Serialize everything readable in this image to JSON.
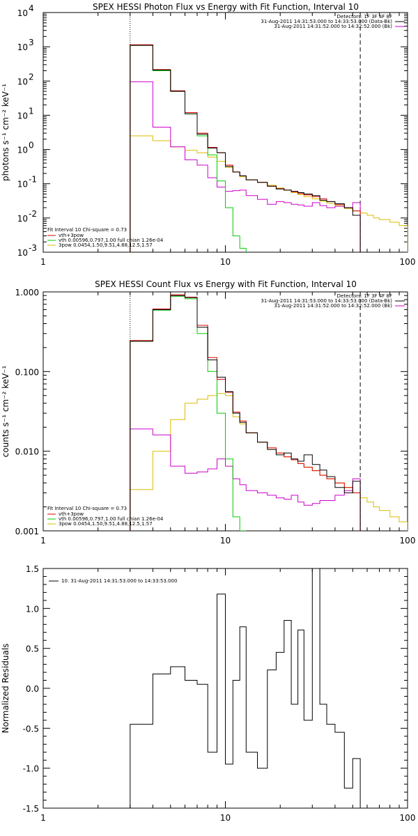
{
  "panels": [
    {
      "id": "photon",
      "title": "SPEX HESSI Photon Flux vs Energy with Fit Function, Interval 10",
      "ylabel": "photons s⁻¹ cm⁻² keV⁻¹",
      "yscale": "log",
      "xscale": "log",
      "xlim": [
        1,
        100
      ],
      "ylim": [
        0.001,
        10000
      ],
      "xticks": [
        {
          "v": 1,
          "label": "1"
        },
        {
          "v": 10,
          "label": "10"
        },
        {
          "v": 100,
          "label": "100"
        }
      ],
      "yticks": [
        {
          "v": 0.001,
          "base": "10",
          "exp": "-3"
        },
        {
          "v": 0.01,
          "base": "10",
          "exp": "-2"
        },
        {
          "v": 0.1,
          "base": "10",
          "exp": "-1"
        },
        {
          "v": 1,
          "base": "10",
          "exp": "0"
        },
        {
          "v": 10,
          "base": "10",
          "exp": "1"
        },
        {
          "v": 100,
          "base": "10",
          "exp": "2"
        },
        {
          "v": 1000,
          "base": "10",
          "exp": "3"
        },
        {
          "v": 10000,
          "base": "10",
          "exp": "4"
        }
      ],
      "vlines": [
        {
          "x": 3,
          "style": "dotted"
        },
        {
          "x": 55,
          "style": "dashed"
        }
      ],
      "header_lines": [
        "Detectors: 1F 3F 4F 8F",
        "31-Aug-2011 14:31:53.000 to 14:33:53.000 (Data-Bk)",
        "31-Aug-2011 14:31:52.000 to 14:32:52.000 (Bk)"
      ],
      "header_colors": [
        "",
        "#000000",
        "#cc00cc"
      ],
      "legend_title": "Fit Interval 10   Chi-square = 0.73",
      "legend": [
        {
          "label": "vth+3pow",
          "color": "#dd0000"
        },
        {
          "label": "vth 0.00596,0.797,1.00  full chian 1.26e-04",
          "color": "#00cc00"
        },
        {
          "label": "3pow 0.0454,1.50,9.51,4.88,12.5,1.57",
          "color": "#ddbb00"
        }
      ]
    },
    {
      "id": "count",
      "title": "SPEX HESSI Count Flux vs Energy with Fit Function, Interval 10",
      "ylabel": "counts s⁻¹ cm⁻² keV⁻¹",
      "yscale": "log",
      "xscale": "log",
      "xlim": [
        1,
        100
      ],
      "ylim": [
        0.001,
        1.0
      ],
      "xticks": [
        {
          "v": 1,
          "label": "1"
        },
        {
          "v": 10,
          "label": "10"
        },
        {
          "v": 100,
          "label": "100"
        }
      ],
      "yticks": [
        {
          "v": 0.001,
          "label": "0.001"
        },
        {
          "v": 0.01,
          "label": "0.010"
        },
        {
          "v": 0.1,
          "label": "0.100"
        },
        {
          "v": 1.0,
          "label": "1.000"
        }
      ],
      "vlines": [
        {
          "x": 3,
          "style": "dotted"
        },
        {
          "x": 55,
          "style": "dashed"
        }
      ],
      "header_lines": [
        "Detectors: 1F 3F 4F 8F",
        "31-Aug-2011 14:31:53.000 to 14:33:53.000 (Data-Bk)",
        "31-Aug-2011 14:31:52.000 to 14:32:52.000 (Bk)"
      ],
      "header_colors": [
        "",
        "#000000",
        "#cc00cc"
      ],
      "legend_title": "Fit Interval 10   Chi-square = 0.73",
      "legend": [
        {
          "label": "vth+3pow",
          "color": "#dd0000"
        },
        {
          "label": "vth 0.00596,0.797,1.00  full chian 1.26e-04",
          "color": "#00cc00"
        },
        {
          "label": "3pow 0.0454,1.50,9.51,4.88,12.5,1.57",
          "color": "#ddbb00"
        }
      ]
    },
    {
      "id": "resid",
      "title": "",
      "ylabel": "Normalized Residuals",
      "yscale": "linear",
      "xscale": "log",
      "xlim": [
        1,
        100
      ],
      "ylim": [
        -1.5,
        1.5
      ],
      "xticks": [
        {
          "v": 1,
          "label": "1"
        },
        {
          "v": 10,
          "label": "10"
        },
        {
          "v": 100,
          "label": "100"
        }
      ],
      "yticks": [
        {
          "v": -1.5,
          "label": "-1.5"
        },
        {
          "v": -1.0,
          "label": "-1.0"
        },
        {
          "v": -0.5,
          "label": "-0.5"
        },
        {
          "v": 0.0,
          "label": "0.0"
        },
        {
          "v": 0.5,
          "label": "0.5"
        },
        {
          "v": 1.0,
          "label": "1.0"
        },
        {
          "v": 1.5,
          "label": "1.5"
        }
      ],
      "vlines": [],
      "header_lines": [],
      "header_colors": [],
      "legend_title": "",
      "legend": [
        {
          "label": "10. 31-Aug-2011 14:31:53.000 to 14:33:53.000",
          "color": "#000000"
        }
      ]
    }
  ],
  "chart_data": [
    {
      "type": "line",
      "title": "SPEX HESSI Photon Flux vs Energy with Fit Function, Interval 10",
      "xlabel": "",
      "ylabel": "photons s⁻¹ cm⁻² keV⁻¹",
      "xlim": [
        1,
        100
      ],
      "ylim": [
        0.001,
        10000
      ],
      "grid": false,
      "legend_position": "bottom-left",
      "bin_edges": [
        3,
        4,
        5,
        6,
        7,
        8,
        9,
        10,
        11,
        12,
        13,
        15,
        17,
        19,
        21,
        23,
        25,
        27,
        30,
        33,
        36,
        40,
        45,
        50,
        55,
        60,
        65,
        70,
        80,
        90,
        100
      ],
      "series": [
        {
          "name": "31-Aug-2011 14:31:53.000 to 14:33:53.000 (Data-Bk)",
          "color": "#000000",
          "values": [
            1100,
            210,
            50,
            11,
            2.8,
            1.1,
            0.8,
            0.32,
            0.22,
            0.17,
            0.13,
            0.11,
            0.085,
            0.07,
            0.065,
            0.06,
            0.055,
            0.05,
            0.045,
            0.033,
            0.03,
            0.026,
            0.02,
            0.012,
            null,
            null,
            null,
            null,
            null,
            null
          ]
        },
        {
          "name": "vth+3pow",
          "color": "#dd0000",
          "values": [
            1150,
            215,
            52,
            12,
            3.0,
            1.15,
            0.8,
            0.35,
            0.22,
            0.17,
            0.13,
            0.11,
            0.085,
            0.072,
            0.065,
            0.058,
            0.052,
            0.047,
            0.042,
            0.036,
            0.03,
            0.025,
            0.02,
            0.016,
            null,
            null,
            null,
            null,
            null,
            null
          ]
        },
        {
          "name": "vth",
          "color": "#00cc00",
          "values": [
            1100,
            200,
            50,
            11,
            2.5,
            0.7,
            0.12,
            0.02,
            0.003,
            0.0013,
            null,
            null,
            null,
            null,
            null,
            null,
            null,
            null,
            null,
            null,
            null,
            null,
            null,
            null,
            null,
            null,
            null,
            null,
            null,
            null
          ]
        },
        {
          "name": "3pow",
          "color": "#ddbb00",
          "values": [
            2.5,
            1.8,
            1.2,
            0.95,
            0.8,
            0.6,
            0.45,
            0.3,
            0.22,
            0.16,
            0.13,
            0.11,
            0.09,
            0.075,
            0.065,
            0.055,
            0.048,
            0.042,
            0.036,
            0.031,
            0.027,
            0.023,
            0.019,
            0.016,
            0.014,
            0.012,
            0.01,
            0.009,
            0.0075,
            0.006
          ]
        },
        {
          "name": "31-Aug-2011 14:31:52.000 to 14:32:52.000 (Bk)",
          "color": "#cc00cc",
          "values": [
            95,
            4.5,
            1.2,
            0.5,
            0.35,
            0.15,
            0.08,
            0.06,
            0.063,
            0.065,
            0.045,
            0.035,
            0.025,
            0.03,
            0.028,
            0.025,
            0.024,
            0.022,
            0.028,
            0.023,
            0.02,
            0.022,
            0.02,
            0.028,
            null,
            null,
            null,
            null,
            null,
            null
          ]
        }
      ]
    },
    {
      "type": "line",
      "title": "SPEX HESSI Count Flux vs Energy with Fit Function, Interval 10",
      "xlabel": "",
      "ylabel": "counts s⁻¹ cm⁻² keV⁻¹",
      "xlim": [
        1,
        100
      ],
      "ylim": [
        0.001,
        1.0
      ],
      "grid": false,
      "legend_position": "bottom-left",
      "bin_edges": [
        3,
        4,
        5,
        6,
        7,
        8,
        9,
        10,
        11,
        12,
        13,
        15,
        17,
        19,
        21,
        23,
        25,
        27,
        30,
        33,
        36,
        40,
        45,
        50,
        55,
        60,
        65,
        70,
        80,
        90,
        100
      ],
      "series": [
        {
          "name": "31-Aug-2011 14:31:53.000 to 14:33:53.000 (Data-Bk)",
          "color": "#000000",
          "values": [
            0.24,
            0.6,
            0.9,
            0.85,
            0.36,
            0.14,
            0.085,
            0.056,
            0.03,
            0.023,
            0.017,
            0.013,
            0.0105,
            0.009,
            0.0095,
            0.008,
            0.0075,
            0.009,
            0.0068,
            0.0058,
            0.0048,
            0.0035,
            0.003,
            0.0042,
            null,
            null,
            null,
            null,
            null,
            null
          ]
        },
        {
          "name": "vth+3pow",
          "color": "#dd0000",
          "values": [
            0.245,
            0.61,
            0.92,
            0.86,
            0.38,
            0.15,
            0.08,
            0.055,
            0.031,
            0.024,
            0.017,
            0.013,
            0.011,
            0.0095,
            0.0085,
            0.0078,
            0.007,
            0.0063,
            0.0057,
            0.005,
            0.0045,
            0.004,
            0.0035,
            0.003,
            null,
            null,
            null,
            null,
            null,
            null
          ]
        },
        {
          "name": "vth",
          "color": "#00cc00",
          "values": [
            0.24,
            0.59,
            0.88,
            0.82,
            0.3,
            0.1,
            0.03,
            0.008,
            0.0015,
            0.001,
            null,
            null,
            null,
            null,
            null,
            null,
            null,
            null,
            null,
            null,
            null,
            null,
            null,
            null,
            null,
            null,
            null,
            null,
            null,
            null
          ]
        },
        {
          "name": "3pow",
          "color": "#ddbb00",
          "values": [
            0.0033,
            0.01,
            0.025,
            0.04,
            0.045,
            0.05,
            0.053,
            0.05,
            0.027,
            0.022,
            0.017,
            0.013,
            0.011,
            0.0095,
            0.0085,
            0.0078,
            0.007,
            0.0063,
            0.0057,
            0.005,
            0.0045,
            0.004,
            0.0035,
            0.003,
            0.0026,
            0.0023,
            0.002,
            0.0018,
            0.0015,
            0.0013
          ]
        },
        {
          "name": "31-Aug-2011 14:31:52.000 to 14:32:52.000 (Bk)",
          "color": "#cc00cc",
          "values": [
            0.019,
            0.016,
            0.0065,
            0.0053,
            0.0055,
            0.006,
            0.008,
            0.0065,
            0.0045,
            0.0038,
            0.0032,
            0.003,
            0.0028,
            0.0026,
            0.0025,
            0.0028,
            0.0023,
            0.0021,
            0.0022,
            0.0024,
            0.0024,
            0.0028,
            0.0032,
            0.0045,
            null,
            null,
            null,
            null,
            null,
            null
          ]
        }
      ]
    },
    {
      "type": "line",
      "title": "",
      "xlabel": "",
      "ylabel": "Normalized Residuals",
      "xlim": [
        1,
        100
      ],
      "ylim": [
        -1.5,
        1.5
      ],
      "grid": false,
      "legend_position": "top-left",
      "bin_edges": [
        3,
        4,
        5,
        6,
        7,
        8,
        9,
        10,
        11,
        12,
        13,
        15,
        17,
        19,
        21,
        23,
        25,
        27,
        30,
        33,
        36,
        40,
        45,
        50,
        55
      ],
      "series": [
        {
          "name": "10. 31-Aug-2011 14:31:53.000 to 14:33:53.000",
          "color": "#000000",
          "values": [
            -0.45,
            0.18,
            0.27,
            0.1,
            0.05,
            -0.8,
            1.18,
            -0.95,
            0.1,
            0.77,
            -0.8,
            -1.0,
            0.23,
            0.45,
            0.85,
            -0.2,
            0.73,
            -0.4,
            1.5,
            -0.2,
            -0.45,
            -0.55,
            -1.25,
            -0.88
          ]
        }
      ]
    }
  ]
}
